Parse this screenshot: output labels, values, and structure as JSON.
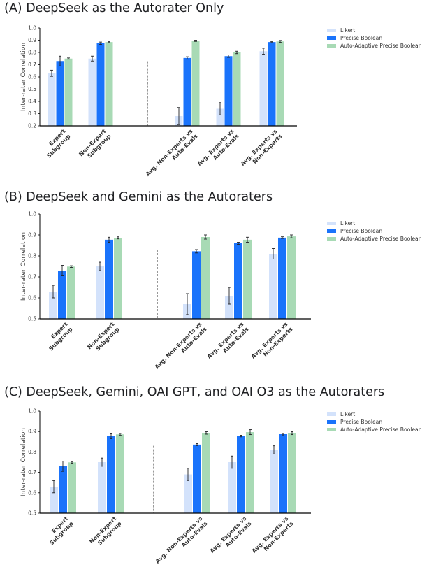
{
  "colors": {
    "likert": "#d3e2fb",
    "precise_boolean": "#1a73fb",
    "auto_adaptive": "#a8dab5",
    "error_bar": "#202124",
    "axis": "#000000",
    "divider": "#333333"
  },
  "legend": [
    "Likert",
    "Precise Boolean",
    "Auto-Adaptive Precise Boolean"
  ],
  "ylabel": "Inter-rater Correlation",
  "categories": [
    [
      "Expert",
      "Subgroup"
    ],
    [
      "Non-Expert",
      "Subgroup"
    ],
    [
      "Avg. Non-Experts vs",
      "Auto-Evals"
    ],
    [
      "Avg. Experts vs",
      "Auto-Evals"
    ],
    [
      "Avg. Experts vs",
      "Non-Experts"
    ]
  ],
  "chart_data": [
    {
      "type": "bar",
      "title": "(A)  DeepSeek as the Autorater Only",
      "ylim": [
        0.2,
        1.0
      ],
      "yticks": [
        "0.2",
        "0.3",
        "0.4",
        "0.5",
        "0.6",
        "0.7",
        "0.8",
        "0.9",
        "1.0"
      ],
      "series": [
        {
          "name": "Likert",
          "values": [
            0.63,
            0.75,
            0.28,
            0.34,
            0.81
          ],
          "errors": [
            0.025,
            0.02,
            0.07,
            0.05,
            0.025
          ]
        },
        {
          "name": "Precise Boolean",
          "values": [
            0.73,
            0.875,
            0.755,
            0.77,
            0.885
          ],
          "errors": [
            0.04,
            0.01,
            0.01,
            0.01,
            0.005
          ]
        },
        {
          "name": "Auto-Adaptive Precise Boolean",
          "values": [
            0.75,
            0.885,
            0.895,
            0.8,
            0.89
          ],
          "errors": [
            0.005,
            0.005,
            0.005,
            0.01,
            0.008
          ]
        }
      ]
    },
    {
      "type": "bar",
      "title": "(B)  DeepSeek and Gemini as the Autoraters",
      "ylim": [
        0.5,
        1.0
      ],
      "yticks": [
        "0.5",
        "0.6",
        "0.7",
        "0.8",
        "0.9",
        "1.0"
      ],
      "series": [
        {
          "name": "Likert",
          "values": [
            0.63,
            0.75,
            0.57,
            0.61,
            0.81
          ],
          "errors": [
            0.03,
            0.02,
            0.05,
            0.04,
            0.025
          ]
        },
        {
          "name": "Precise Boolean",
          "values": [
            0.73,
            0.877,
            0.822,
            0.86,
            0.887
          ],
          "errors": [
            0.025,
            0.012,
            0.008,
            0.005,
            0.004
          ]
        },
        {
          "name": "Auto-Adaptive Precise Boolean",
          "values": [
            0.749,
            0.886,
            0.89,
            0.877,
            0.893
          ],
          "errors": [
            0.004,
            0.005,
            0.01,
            0.012,
            0.007
          ]
        }
      ]
    },
    {
      "type": "bar",
      "title": "(C)  DeepSeek, Gemini, OAI GPT, and OAI O3 as the Autoraters",
      "ylim": [
        0.5,
        1.0
      ],
      "yticks": [
        "0.5",
        "0.6",
        "0.7",
        "0.8",
        "0.9",
        "1.0"
      ],
      "series": [
        {
          "name": "Likert",
          "values": [
            0.63,
            0.75,
            0.69,
            0.75,
            0.81
          ],
          "errors": [
            0.03,
            0.02,
            0.03,
            0.03,
            0.02
          ]
        },
        {
          "name": "Precise Boolean",
          "values": [
            0.73,
            0.877,
            0.836,
            0.878,
            0.887
          ],
          "errors": [
            0.025,
            0.012,
            0.005,
            0.004,
            0.004
          ]
        },
        {
          "name": "Auto-Adaptive Precise Boolean",
          "values": [
            0.749,
            0.886,
            0.893,
            0.897,
            0.892
          ],
          "errors": [
            0.004,
            0.005,
            0.006,
            0.012,
            0.007
          ]
        }
      ]
    }
  ]
}
